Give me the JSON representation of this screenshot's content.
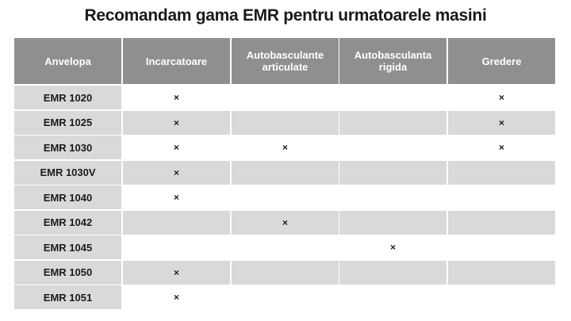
{
  "title": "Recomandam gama EMR pentru urmatoarele masini",
  "table": {
    "headers": [
      "Anvelopa",
      "Incarcatoare",
      "Autobasculante articulate",
      "Autobasculanta rigida",
      "Gredere"
    ],
    "rows": [
      {
        "name": "EMR 1020",
        "cells": [
          "×",
          null,
          null,
          "×"
        ]
      },
      {
        "name": "EMR 1025",
        "cells": [
          "×",
          null,
          null,
          "×"
        ]
      },
      {
        "name": "EMR 1030",
        "cells": [
          "×",
          "×",
          null,
          "×"
        ]
      },
      {
        "name": "EMR 1030V",
        "cells": [
          "×",
          null,
          null,
          null
        ]
      },
      {
        "name": "EMR 1040",
        "cells": [
          "×",
          null,
          null,
          null
        ]
      },
      {
        "name": "EMR 1042",
        "cells": [
          null,
          "×",
          null,
          null
        ]
      },
      {
        "name": "EMR 1045",
        "cells": [
          null,
          null,
          "×",
          null
        ]
      },
      {
        "name": "EMR 1050",
        "cells": [
          "×",
          null,
          null,
          null
        ]
      },
      {
        "name": "EMR 1051",
        "cells": [
          "×",
          null,
          null,
          null
        ]
      }
    ]
  }
}
